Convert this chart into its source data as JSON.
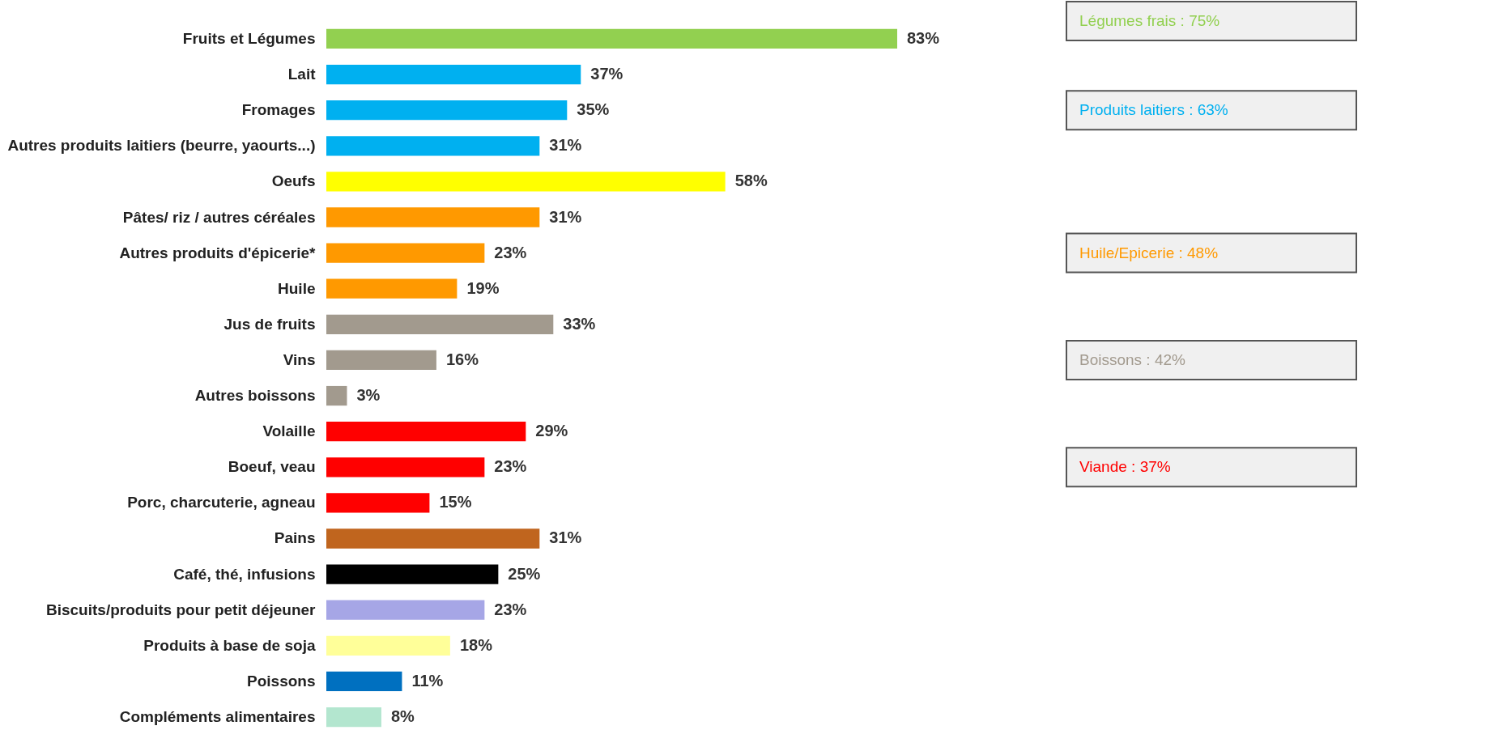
{
  "chart_data": {
    "type": "bar",
    "orientation": "horizontal",
    "tick_labels": "y",
    "categories": [
      "Fruits et Légumes",
      "Lait",
      "Fromages",
      "Autres produits laitiers (beurre, yaourts...)",
      "Oeufs",
      "Pâtes/ riz / autres céréales",
      "Autres produits d'épicerie*",
      "Huile",
      "Jus de fruits",
      "Vins",
      "Autres boissons",
      "Volaille",
      "Boeuf, veau",
      "Porc, charcuterie, agneau",
      "Pains",
      "Café, thé, infusions",
      "Biscuits/produits pour petit déjeuner",
      "Produits à base de soja",
      "Poissons",
      "Compléments alimentaires"
    ],
    "values": [
      83,
      37,
      35,
      31,
      58,
      31,
      23,
      19,
      33,
      16,
      3,
      29,
      23,
      15,
      31,
      25,
      23,
      18,
      11,
      8
    ],
    "value_labels": [
      "83%",
      "37%",
      "35%",
      "31%",
      "58%",
      "31%",
      "23%",
      "19%",
      "33%",
      "16%",
      "3%",
      "29%",
      "23%",
      "15%",
      "31%",
      "25%",
      "23%",
      "18%",
      "11%",
      "8%"
    ],
    "colors": [
      "#92d050",
      "#00b0f0",
      "#00b0f0",
      "#00b0f0",
      "#ffff00",
      "#ff9900",
      "#ff9900",
      "#ff9900",
      "#a29a8e",
      "#a29a8e",
      "#a29a8e",
      "#ff0000",
      "#ff0000",
      "#ff0000",
      "#c0651e",
      "#000000",
      "#a6a6e6",
      "#ffff99",
      "#0070c0",
      "#b3e6cf"
    ],
    "annotations": [
      "Légumes frais : 75%",
      "Produits laitiers : 63%",
      "Huile/Epicerie : 48%",
      "Boissons : 42%",
      "Viande : 37%"
    ]
  }
}
